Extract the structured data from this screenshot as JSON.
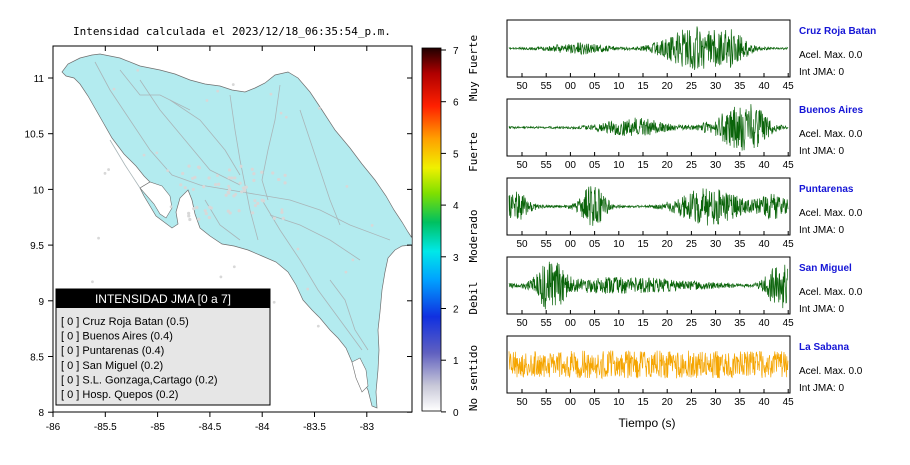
{
  "map": {
    "title": "Intensidad calculada el 2023/12/18_06:35:54_p.m.",
    "x_ticks": [
      "-86",
      "-85.5",
      "-85",
      "-84.5",
      "-84",
      "-83.5",
      "-83"
    ],
    "y_ticks": [
      "11",
      "10.5",
      "10",
      "9.5",
      "9",
      "8.5",
      "8"
    ],
    "land_color": "#b3ebef",
    "legend": {
      "title": "INTENSIDAD JMA [0 a 7]",
      "items": [
        "[ 0 ]  Cruz Roja Batan (0.5)",
        "[ 0 ]  Buenos Aires (0.4)",
        "[ 0 ]  Puntarenas (0.4)",
        "[ 0 ]  San Miguel (0.2)",
        "[ 0 ]  S.L. Gonzaga,Cartago (0.2)",
        "[ 0 ]  Hosp. Quepos (0.2)"
      ]
    }
  },
  "colorbar": {
    "ticks": [
      "7",
      "6",
      "5",
      "4",
      "3",
      "2",
      "1",
      "0"
    ],
    "labels": [
      "Muy Fuerte",
      "Fuerte",
      "Moderado",
      "Debil",
      "No sentido"
    ]
  },
  "waveforms": {
    "xlabel": "Tiempo (s)",
    "time_ticks": [
      "50",
      "55",
      "00",
      "05",
      "10",
      "15",
      "20",
      "25",
      "30",
      "35",
      "40",
      "45"
    ],
    "stations": [
      {
        "name": "Cruz Roja Batan",
        "acel": "Acel. Max. 0.0",
        "jma": "Int JMA: 0",
        "color": "#0a640a"
      },
      {
        "name": "Buenos Aires",
        "acel": "Acel. Max. 0.0",
        "jma": "Int JMA: 0",
        "color": "#0a640a"
      },
      {
        "name": "Puntarenas",
        "acel": "Acel. Max. 0.0",
        "jma": "Int JMA: 0",
        "color": "#0a640a"
      },
      {
        "name": "San Miguel",
        "acel": "Acel. Max. 0.0",
        "jma": "Int JMA: 0",
        "color": "#0a640a"
      },
      {
        "name": "La Sabana",
        "acel": "Acel. Max. 0.0",
        "jma": "Int JMA: 0",
        "color": "#f5a500"
      }
    ]
  }
}
